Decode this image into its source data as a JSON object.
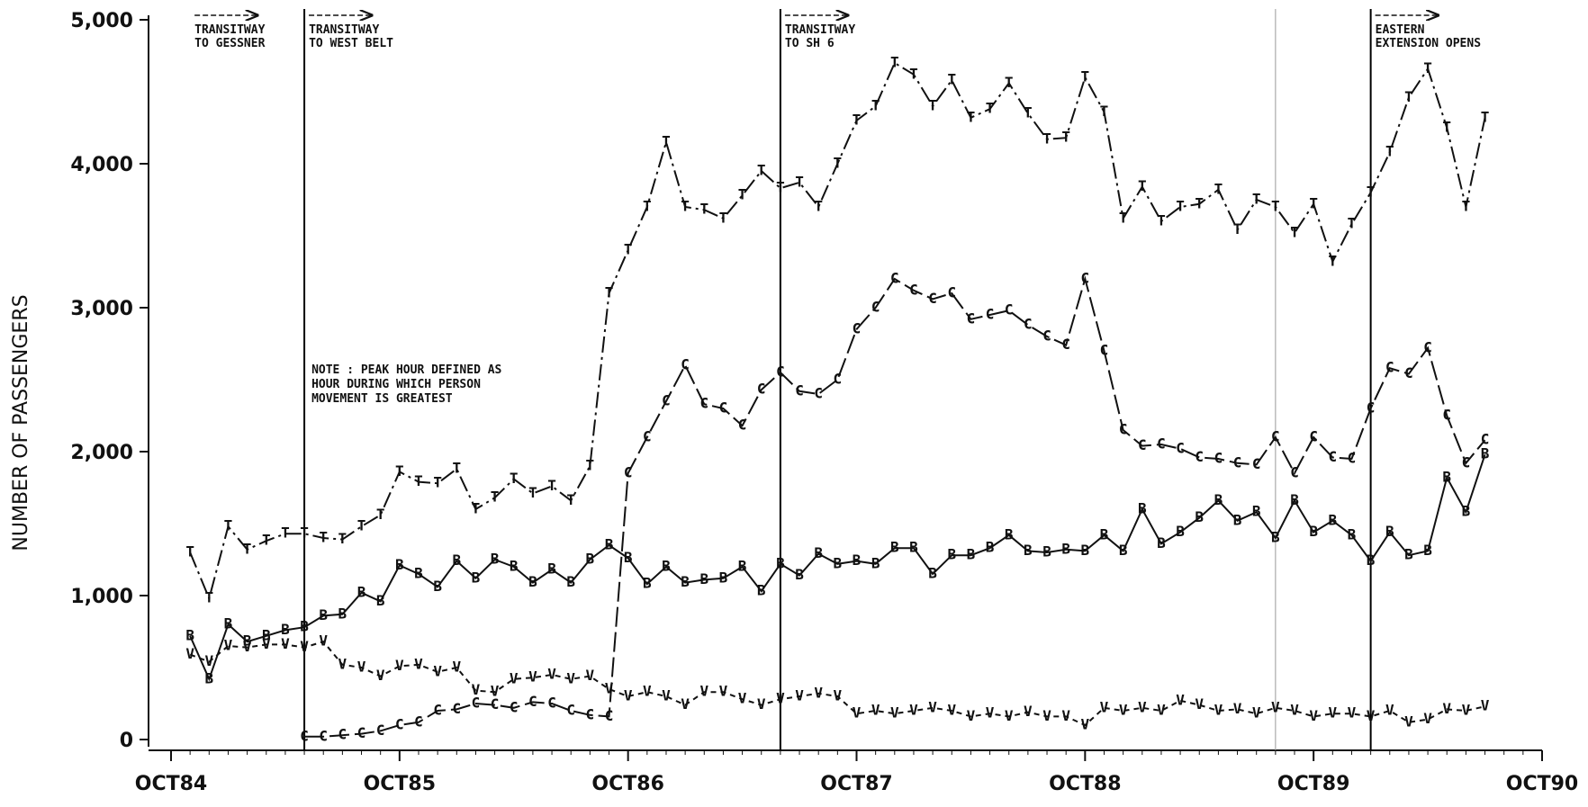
{
  "chart_data": {
    "type": "line",
    "y_label": "NUMBER OF PASSENGERS",
    "x": [
      "1984-11",
      "1984-12",
      "1985-01",
      "1985-02",
      "1985-03",
      "1985-04",
      "1985-05",
      "1985-06",
      "1985-07",
      "1985-08",
      "1985-09",
      "1985-10",
      "1985-11",
      "1985-12",
      "1986-01",
      "1986-02",
      "1986-03",
      "1986-04",
      "1986-05",
      "1986-06",
      "1986-07",
      "1986-08",
      "1986-09",
      "1986-10",
      "1986-11",
      "1986-12",
      "1987-01",
      "1987-02",
      "1987-03",
      "1987-04",
      "1987-05",
      "1987-06",
      "1987-07",
      "1987-08",
      "1987-09",
      "1987-10",
      "1987-11",
      "1987-12",
      "1988-01",
      "1988-02",
      "1988-03",
      "1988-04",
      "1988-05",
      "1988-06",
      "1988-07",
      "1988-08",
      "1988-09",
      "1988-10",
      "1988-11",
      "1988-12",
      "1989-01",
      "1989-02",
      "1989-03",
      "1989-04",
      "1989-05",
      "1989-06",
      "1989-07",
      "1989-08",
      "1989-09",
      "1989-10",
      "1989-11",
      "1989-12",
      "1990-01",
      "1990-02",
      "1990-03",
      "1990-04",
      "1990-05",
      "1990-06",
      "1990-07"
    ],
    "series": [
      {
        "name": "T",
        "color": "#111",
        "dash": "18 5 3 5",
        "values": [
          1300,
          980,
          1480,
          1320,
          1380,
          1430,
          1430,
          1400,
          1390,
          1480,
          1560,
          1860,
          1790,
          1780,
          1880,
          1600,
          1680,
          1810,
          1710,
          1760,
          1660,
          1900,
          3100,
          3400,
          3700,
          4150,
          3700,
          3680,
          3620,
          3780,
          3950,
          3830,
          3870,
          3700,
          4000,
          4300,
          4400,
          4700,
          4620,
          4400,
          4580,
          4320,
          4380,
          4560,
          4350,
          4170,
          4180,
          4600,
          4360,
          3620,
          3840,
          3600,
          3700,
          3720,
          3820,
          3540,
          3750,
          3700,
          3520,
          3720,
          3320,
          3580,
          3800,
          4080,
          4460,
          4660,
          4250,
          3700,
          4320
        ]
      },
      {
        "name": "C",
        "color": "#111",
        "dash": "22 6",
        "values": [
          null,
          null,
          null,
          null,
          null,
          null,
          20,
          20,
          30,
          40,
          60,
          100,
          120,
          200,
          210,
          250,
          240,
          220,
          260,
          250,
          200,
          170,
          160,
          1850,
          2100,
          2350,
          2600,
          2330,
          2300,
          2180,
          2430,
          2550,
          2420,
          2400,
          2500,
          2850,
          3000,
          3200,
          3120,
          3060,
          3100,
          2920,
          2950,
          2980,
          2880,
          2800,
          2740,
          3200,
          2700,
          2150,
          2040,
          2050,
          2020,
          1960,
          1950,
          1920,
          1910,
          2100,
          1850,
          2100,
          1960,
          1950,
          2300,
          2580,
          2540,
          2720,
          2250,
          1920,
          2080
        ]
      },
      {
        "name": "B",
        "color": "#111",
        "dash": "none",
        "values": [
          720,
          420,
          800,
          680,
          720,
          760,
          780,
          860,
          870,
          1020,
          960,
          1210,
          1150,
          1060,
          1240,
          1120,
          1250,
          1200,
          1090,
          1180,
          1090,
          1250,
          1350,
          1260,
          1080,
          1200,
          1090,
          1110,
          1120,
          1200,
          1030,
          1220,
          1140,
          1290,
          1220,
          1240,
          1220,
          1330,
          1330,
          1150,
          1280,
          1280,
          1330,
          1420,
          1310,
          1300,
          1320,
          1310,
          1420,
          1310,
          1600,
          1360,
          1440,
          1540,
          1660,
          1520,
          1580,
          1400,
          1660,
          1440,
          1520,
          1420,
          1240,
          1440,
          1280,
          1310,
          1820,
          1580,
          1980
        ]
      },
      {
        "name": "V",
        "color": "#111",
        "dash": "6 5",
        "values": [
          590,
          540,
          650,
          640,
          660,
          660,
          640,
          680,
          520,
          500,
          440,
          510,
          520,
          470,
          500,
          340,
          330,
          420,
          430,
          450,
          420,
          440,
          350,
          300,
          330,
          300,
          240,
          330,
          330,
          280,
          240,
          280,
          300,
          320,
          300,
          180,
          200,
          180,
          200,
          220,
          200,
          160,
          180,
          160,
          190,
          160,
          160,
          100,
          220,
          200,
          220,
          200,
          270,
          240,
          200,
          210,
          180,
          220,
          200,
          160,
          180,
          180,
          160,
          200,
          120,
          140,
          210,
          200,
          230
        ]
      }
    ],
    "xlim": [
      "1984-10",
      "1990-10"
    ],
    "xticks": [
      {
        "value": "1984-10",
        "label": "OCT84"
      },
      {
        "value": "1985-10",
        "label": "OCT85"
      },
      {
        "value": "1986-10",
        "label": "OCT86"
      },
      {
        "value": "1987-10",
        "label": "OCT87"
      },
      {
        "value": "1988-10",
        "label": "OCT88"
      },
      {
        "value": "1989-10",
        "label": "OCT89"
      },
      {
        "value": "1990-10",
        "label": "OCT90"
      }
    ],
    "ylim": [
      0,
      5000
    ],
    "yticks": [
      0,
      {
        "value": 1000,
        "label": "1,000"
      },
      {
        "value": 2000,
        "label": "2,000"
      },
      {
        "value": 3000,
        "label": "3,000"
      },
      {
        "value": 4000,
        "label": "4,000"
      },
      {
        "value": 5000,
        "label": "5,000"
      }
    ],
    "vlines": [
      {
        "x": "1985-05",
        "color": "#000"
      },
      {
        "x": "1987-06",
        "color": "#000"
      },
      {
        "x": "1989-08",
        "color": "#999"
      },
      {
        "x": "1990-01",
        "color": "#000"
      }
    ],
    "annotations": [
      {
        "x": "1984-11",
        "lines": [
          "TRANSITWAY",
          "TO GESSNER"
        ]
      },
      {
        "x": "1985-05",
        "lines": [
          "TRANSITWAY",
          "TO WEST BELT"
        ]
      },
      {
        "x": "1987-06",
        "lines": [
          "TRANSITWAY",
          "TO SH 6"
        ]
      },
      {
        "x": "1990-01",
        "lines": [
          "EASTERN",
          "EXTENSION OPENS"
        ]
      }
    ],
    "note": [
      "NOTE : PEAK HOUR DEFINED AS",
      "HOUR DURING WHICH PERSON",
      "MOVEMENT IS GREATEST"
    ]
  }
}
